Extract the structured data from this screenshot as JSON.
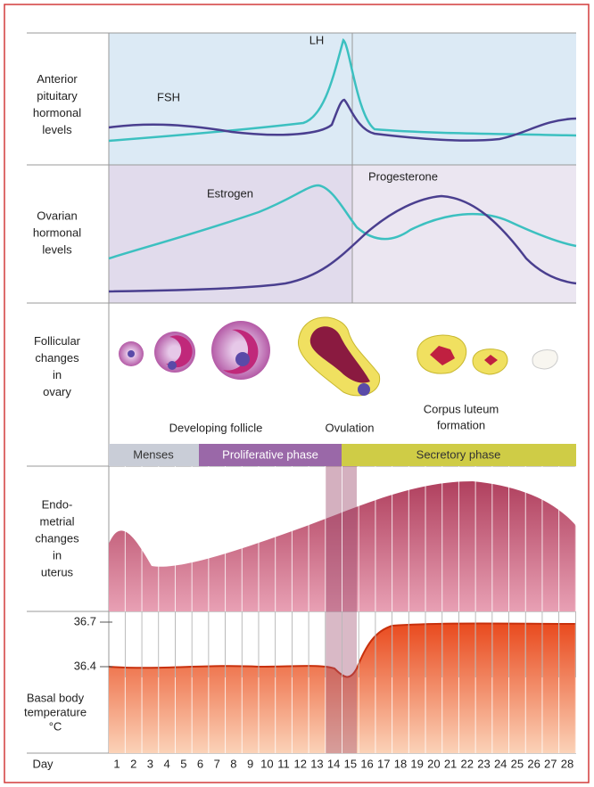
{
  "pituitary": {
    "label": [
      "Anterior",
      "pituitary",
      "hormonal",
      "levels"
    ],
    "curves": [
      "LH",
      "FSH"
    ]
  },
  "ovarian": {
    "label": [
      "Ovarian",
      "hormonal",
      "levels"
    ],
    "curves": [
      "Estrogen",
      "Progesterone"
    ]
  },
  "follicular": {
    "label": [
      "Follicular",
      "changes",
      "in",
      "ovary"
    ],
    "captions": [
      "Developing follicle",
      "Ovulation"
    ],
    "corpus": [
      "Corpus luteum",
      "formation"
    ]
  },
  "phases": [
    "Menses",
    "Proliferative phase",
    "Secretory phase"
  ],
  "endometrial": {
    "label": [
      "Endo-",
      "metrial",
      "changes",
      "in",
      "uterus"
    ]
  },
  "temperature": {
    "ticks": [
      "36.7",
      "36.4"
    ],
    "label": [
      "Basal body",
      "temperature",
      "°C"
    ]
  },
  "days": {
    "label": "Day",
    "values": [
      1,
      2,
      3,
      4,
      5,
      6,
      7,
      8,
      9,
      10,
      11,
      12,
      13,
      14,
      15,
      16,
      17,
      18,
      19,
      20,
      21,
      22,
      23,
      24,
      25,
      26,
      27,
      28
    ]
  }
}
